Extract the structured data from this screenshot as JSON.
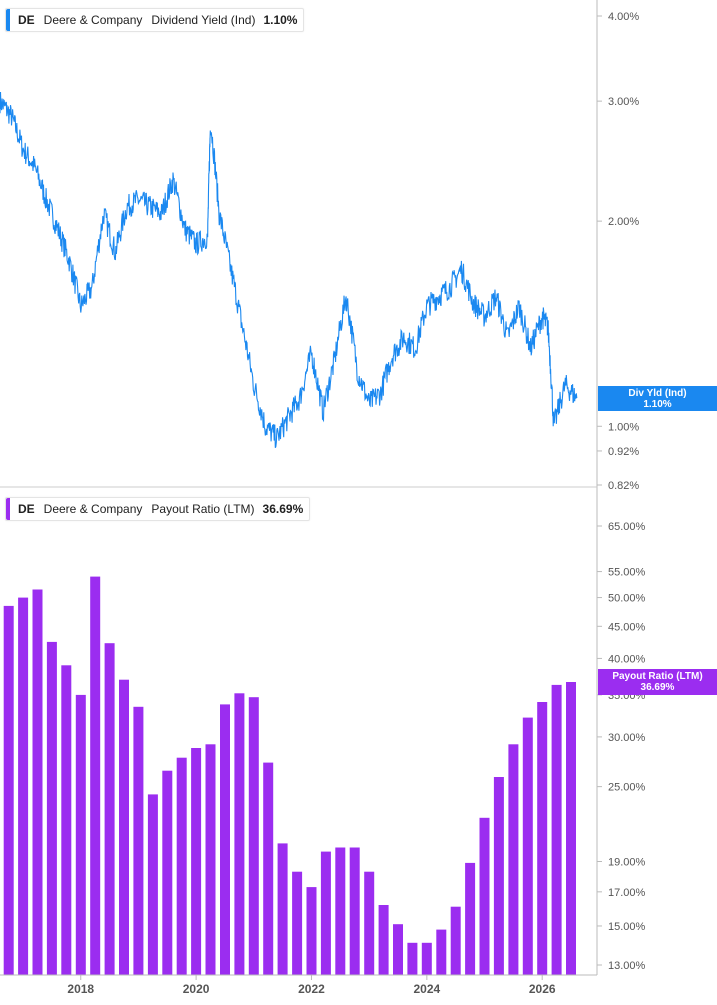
{
  "colors": {
    "dividend": "#1a88f0",
    "payout": "#9b2df0",
    "axis": "#bbbbbb",
    "text": "#555555"
  },
  "top_legend": {
    "ticker": "DE",
    "company": "Deere & Company",
    "metric": "Dividend Yield (Ind)",
    "value": "1.10%"
  },
  "bottom_legend": {
    "ticker": "DE",
    "company": "Deere & Company",
    "metric": "Payout Ratio (LTM)",
    "value": "36.69%"
  },
  "top_tag": {
    "label": "Div Yld (Ind)",
    "value": "1.10%"
  },
  "bottom_tag": {
    "label": "Payout Ratio (LTM)",
    "value": "36.69%"
  },
  "chart_data": [
    {
      "type": "line",
      "scale": "log",
      "series": [
        {
          "name": "Dividend Yield (Ind)",
          "x": [
            2016.6,
            2016.8,
            2017.0,
            2017.2,
            2017.4,
            2017.6,
            2017.8,
            2018.0,
            2018.2,
            2018.4,
            2018.6,
            2018.8,
            2019.0,
            2019.2,
            2019.4,
            2019.6,
            2019.8,
            2020.0,
            2020.2,
            2020.25,
            2020.4,
            2020.6,
            2020.8,
            2021.0,
            2021.2,
            2021.4,
            2021.6,
            2021.8,
            2022.0,
            2022.2,
            2022.4,
            2022.6,
            2022.8,
            2023.0,
            2023.2,
            2023.4,
            2023.6,
            2023.8,
            2024.0,
            2024.2,
            2024.4,
            2024.6,
            2024.8,
            2025.0,
            2025.2,
            2025.4,
            2025.6,
            2025.8,
            2026.0,
            2026.1,
            2026.2,
            2026.4,
            2026.6
          ],
          "values": [
            3.0,
            2.85,
            2.55,
            2.4,
            2.15,
            1.95,
            1.75,
            1.5,
            1.6,
            2.05,
            1.8,
            2.1,
            2.15,
            2.1,
            2.05,
            2.3,
            1.95,
            1.85,
            1.9,
            2.8,
            2.05,
            1.7,
            1.4,
            1.15,
            1.0,
            0.96,
            1.03,
            1.1,
            1.28,
            1.05,
            1.25,
            1.55,
            1.2,
            1.08,
            1.12,
            1.27,
            1.35,
            1.3,
            1.5,
            1.55,
            1.6,
            1.7,
            1.52,
            1.45,
            1.55,
            1.35,
            1.5,
            1.3,
            1.45,
            1.4,
            1.0,
            1.15,
            1.1
          ]
        }
      ],
      "ylim": [
        0.82,
        4.2
      ],
      "yticks": [
        "4.00%",
        "3.00%",
        "2.00%",
        "1.00%",
        "0.92%",
        "0.82%"
      ],
      "ytick_values": [
        4.0,
        3.0,
        2.0,
        1.0,
        0.92,
        0.82
      ]
    },
    {
      "type": "bar",
      "scale": "log",
      "series": [
        {
          "name": "Payout Ratio (LTM)",
          "x": [
            2016.75,
            2017.0,
            2017.25,
            2017.5,
            2017.75,
            2018.0,
            2018.25,
            2018.5,
            2018.75,
            2019.0,
            2019.25,
            2019.5,
            2019.75,
            2020.0,
            2020.25,
            2020.5,
            2020.75,
            2021.0,
            2021.25,
            2021.5,
            2021.75,
            2022.0,
            2022.25,
            2022.5,
            2022.75,
            2023.0,
            2023.25,
            2023.5,
            2023.75,
            2024.0,
            2024.25,
            2024.5,
            2024.75,
            2025.0,
            2025.25,
            2025.5,
            2025.75,
            2026.0,
            2026.25,
            2026.5
          ],
          "values": [
            48.5,
            50.0,
            51.5,
            42.5,
            39.0,
            35.0,
            54.0,
            42.3,
            37.0,
            33.5,
            24.3,
            26.5,
            27.8,
            28.8,
            29.2,
            33.8,
            35.2,
            34.7,
            27.3,
            20.3,
            18.3,
            17.3,
            19.7,
            20.0,
            20.0,
            18.3,
            16.2,
            15.1,
            14.1,
            14.1,
            14.8,
            16.1,
            18.9,
            22.3,
            25.9,
            29.2,
            32.2,
            34.1,
            36.3,
            36.69
          ]
        }
      ],
      "ylim": [
        12.8,
        68
      ],
      "yticks": [
        "65.00%",
        "55.00%",
        "50.00%",
        "45.00%",
        "40.00%",
        "35.00%",
        "30.00%",
        "25.00%",
        "19.00%",
        "17.00%",
        "15.00%",
        "13.00%"
      ],
      "ytick_values": [
        65,
        55,
        50,
        45,
        40,
        35,
        30,
        25,
        19,
        17,
        15,
        13
      ]
    }
  ],
  "x_axis": {
    "ticks": [
      "2018",
      "2020",
      "2022",
      "2024",
      "2026"
    ],
    "tick_values": [
      2018,
      2020,
      2022,
      2024,
      2026
    ],
    "range": [
      2016.6,
      2026.95
    ]
  }
}
